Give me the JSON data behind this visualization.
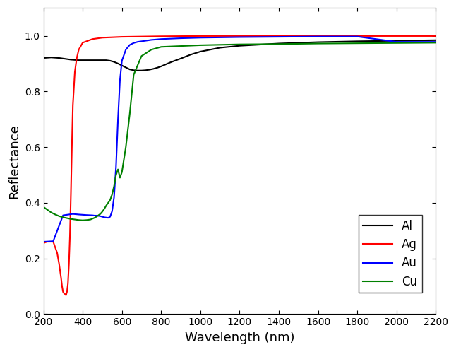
{
  "title": "",
  "xlabel": "Wavelength (nm)",
  "ylabel": "Reflectance",
  "xlim": [
    200,
    2200
  ],
  "ylim": [
    0.0,
    1.1
  ],
  "yticks": [
    0.0,
    0.2,
    0.4,
    0.6,
    0.8,
    1.0
  ],
  "xticks": [
    200,
    400,
    600,
    800,
    1000,
    1200,
    1400,
    1600,
    1800,
    2000,
    2200
  ],
  "background_color": "#ffffff",
  "Al": {
    "x": [
      200,
      220,
      240,
      260,
      280,
      300,
      320,
      340,
      360,
      380,
      400,
      420,
      440,
      460,
      480,
      500,
      520,
      540,
      560,
      580,
      600,
      620,
      640,
      660,
      680,
      700,
      720,
      740,
      760,
      780,
      800,
      850,
      900,
      950,
      1000,
      1100,
      1200,
      1400,
      1600,
      1800,
      2000,
      2200
    ],
    "y": [
      0.92,
      0.921,
      0.922,
      0.921,
      0.92,
      0.918,
      0.916,
      0.914,
      0.913,
      0.912,
      0.912,
      0.912,
      0.912,
      0.912,
      0.912,
      0.912,
      0.912,
      0.91,
      0.906,
      0.9,
      0.893,
      0.886,
      0.879,
      0.876,
      0.875,
      0.875,
      0.876,
      0.878,
      0.881,
      0.885,
      0.89,
      0.905,
      0.918,
      0.932,
      0.943,
      0.957,
      0.964,
      0.972,
      0.977,
      0.98,
      0.982,
      0.984
    ]
  },
  "Ag": {
    "x": [
      200,
      210,
      220,
      250,
      270,
      280,
      290,
      295,
      300,
      305,
      310,
      315,
      320,
      325,
      330,
      335,
      340,
      345,
      350,
      360,
      370,
      380,
      400,
      450,
      500,
      600,
      800,
      1000,
      1400,
      1800,
      2200
    ],
    "y": [
      0.255,
      0.258,
      0.26,
      0.26,
      0.22,
      0.18,
      0.13,
      0.1,
      0.08,
      0.075,
      0.072,
      0.068,
      0.08,
      0.11,
      0.18,
      0.28,
      0.43,
      0.6,
      0.75,
      0.87,
      0.92,
      0.95,
      0.975,
      0.988,
      0.993,
      0.996,
      0.998,
      0.999,
      0.999,
      0.999,
      0.999
    ]
  },
  "Au": {
    "x": [
      200,
      250,
      300,
      350,
      380,
      400,
      420,
      450,
      460,
      470,
      480,
      490,
      500,
      510,
      520,
      530,
      540,
      550,
      560,
      570,
      580,
      590,
      600,
      620,
      640,
      660,
      680,
      700,
      750,
      800,
      900,
      1000,
      1200,
      1400,
      1600,
      1800,
      2000,
      2200
    ],
    "y": [
      0.26,
      0.262,
      0.355,
      0.36,
      0.358,
      0.357,
      0.356,
      0.355,
      0.354,
      0.354,
      0.353,
      0.352,
      0.35,
      0.348,
      0.347,
      0.346,
      0.35,
      0.37,
      0.42,
      0.53,
      0.7,
      0.84,
      0.91,
      0.95,
      0.967,
      0.974,
      0.978,
      0.98,
      0.985,
      0.988,
      0.991,
      0.993,
      0.995,
      0.996,
      0.997,
      0.997,
      0.978,
      0.978
    ]
  },
  "Cu": {
    "x": [
      200,
      220,
      240,
      260,
      280,
      300,
      320,
      340,
      360,
      380,
      400,
      420,
      440,
      460,
      470,
      480,
      490,
      500,
      510,
      520,
      530,
      540,
      550,
      560,
      570,
      580,
      590,
      600,
      620,
      640,
      660,
      700,
      750,
      800,
      1000,
      1200,
      1400,
      1600,
      1800,
      2000,
      2200
    ],
    "y": [
      0.385,
      0.375,
      0.365,
      0.358,
      0.352,
      0.348,
      0.345,
      0.342,
      0.34,
      0.338,
      0.337,
      0.338,
      0.34,
      0.346,
      0.35,
      0.355,
      0.36,
      0.368,
      0.378,
      0.39,
      0.4,
      0.41,
      0.43,
      0.46,
      0.5,
      0.52,
      0.49,
      0.51,
      0.6,
      0.72,
      0.86,
      0.927,
      0.95,
      0.96,
      0.966,
      0.969,
      0.97,
      0.972,
      0.973,
      0.974,
      0.975
    ]
  }
}
